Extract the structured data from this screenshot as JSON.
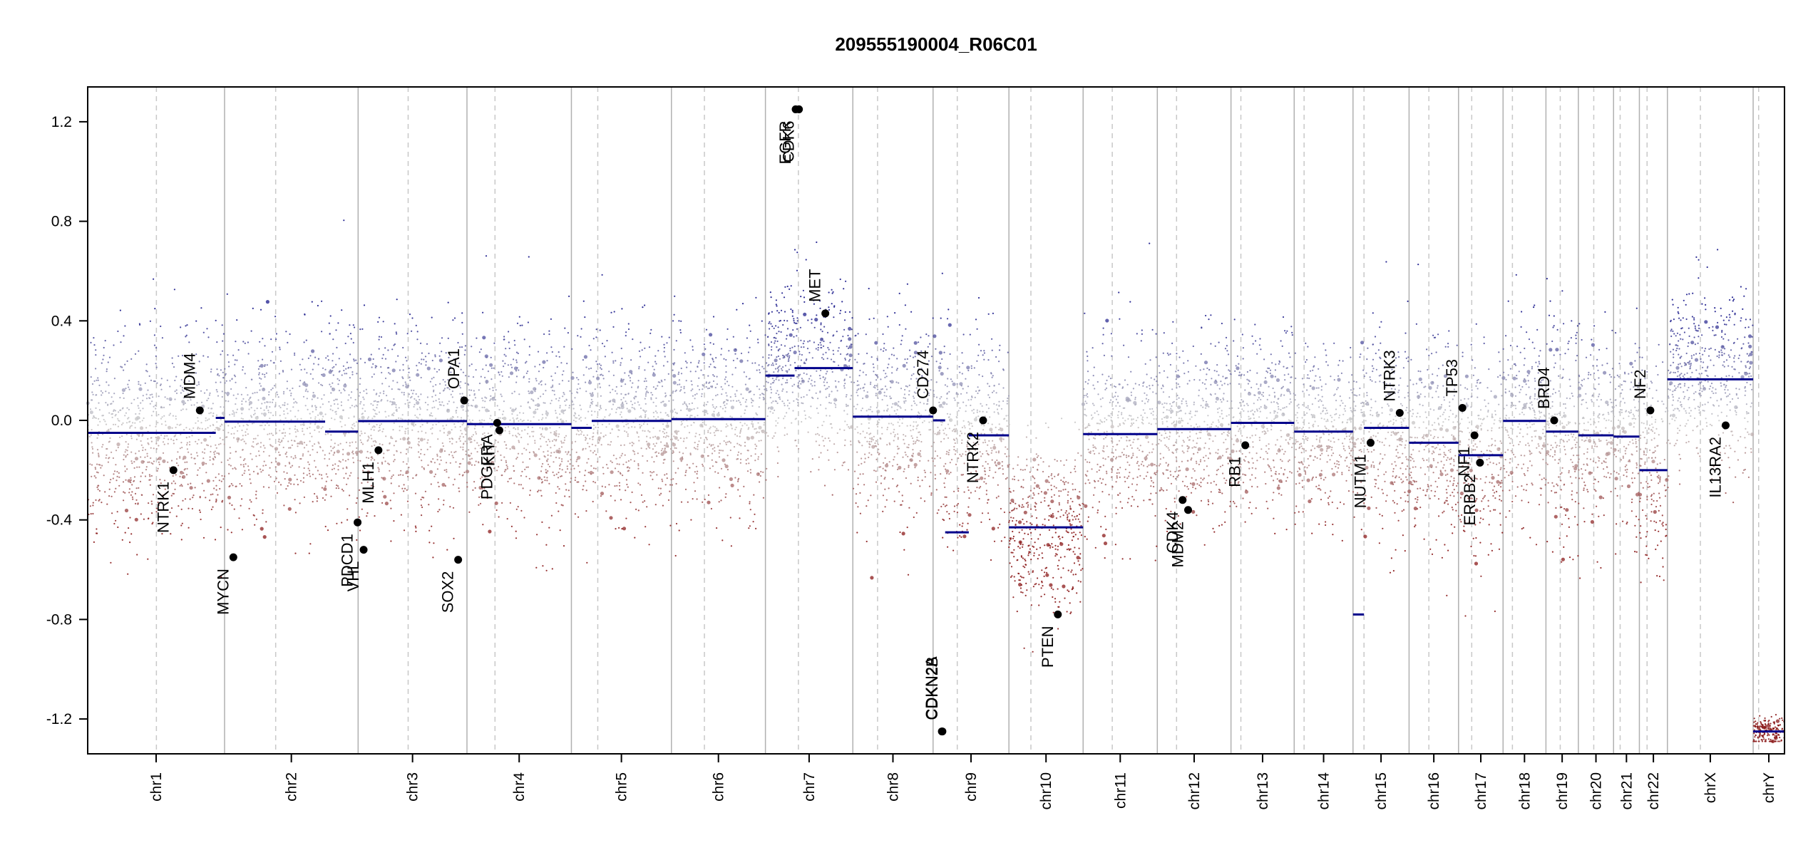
{
  "chart_data": {
    "type": "scatter",
    "title": "209555190004_R06C01",
    "xlabel": "",
    "ylabel": "",
    "ylim": [
      -1.34,
      1.34
    ],
    "yticks": [
      -1.2,
      -0.8,
      -0.4,
      0.0,
      0.4,
      0.8,
      1.2
    ],
    "ytick_labels": [
      "-1.2",
      "-0.8",
      "-0.4",
      "0.0",
      "0.4",
      "0.8",
      "1.2"
    ],
    "grid": false,
    "colors": {
      "gain": "#1a1a8c",
      "loss": "#8b1a1a",
      "neutral": "#c8c8c8",
      "segment": "#00008b",
      "gene_point": "#000000",
      "chromosome_boundary": "#b0b0b0",
      "centromere": "#c8c8c8",
      "frame": "#000000"
    },
    "chromosomes": [
      {
        "name": "chr1",
        "start": 0,
        "end": 249,
        "centromere": 125
      },
      {
        "name": "chr2",
        "start": 249,
        "end": 492,
        "centromere": 342
      },
      {
        "name": "chr3",
        "start": 492,
        "end": 690,
        "centromere": 583
      },
      {
        "name": "chr4",
        "start": 690,
        "end": 880,
        "centromere": 741
      },
      {
        "name": "chr5",
        "start": 880,
        "end": 1062,
        "centromere": 928
      },
      {
        "name": "chr6",
        "start": 1062,
        "end": 1233,
        "centromere": 1122
      },
      {
        "name": "chr7",
        "start": 1233,
        "end": 1392,
        "centromere": 1293
      },
      {
        "name": "chr8",
        "start": 1392,
        "end": 1538,
        "centromere": 1437
      },
      {
        "name": "chr9",
        "start": 1538,
        "end": 1676,
        "centromere": 1582
      },
      {
        "name": "chr10",
        "start": 1676,
        "end": 1811,
        "centromere": 1716
      },
      {
        "name": "chr11",
        "start": 1811,
        "end": 1946,
        "centromere": 1864
      },
      {
        "name": "chr12",
        "start": 1946,
        "end": 2080,
        "centromere": 1981
      },
      {
        "name": "chr13",
        "start": 2080,
        "end": 2195,
        "centromere": 2098
      },
      {
        "name": "chr14",
        "start": 2195,
        "end": 2302,
        "centromere": 2213
      },
      {
        "name": "chr15",
        "start": 2302,
        "end": 2404,
        "centromere": 2322
      },
      {
        "name": "chr16",
        "start": 2404,
        "end": 2494,
        "centromere": 2440
      },
      {
        "name": "chr17",
        "start": 2494,
        "end": 2575,
        "centromere": 2518
      },
      {
        "name": "chr18",
        "start": 2575,
        "end": 2653,
        "centromere": 2592
      },
      {
        "name": "chr19",
        "start": 2653,
        "end": 2712,
        "centromere": 2679
      },
      {
        "name": "chr20",
        "start": 2712,
        "end": 2776,
        "centromere": 2740
      },
      {
        "name": "chr21",
        "start": 2776,
        "end": 2823,
        "centromere": 2788
      },
      {
        "name": "chr22",
        "start": 2823,
        "end": 2874,
        "centromere": 2837
      },
      {
        "name": "chrX",
        "start": 2874,
        "end": 3030,
        "centromere": 2934
      },
      {
        "name": "chrY",
        "start": 3030,
        "end": 3087,
        "centromere": 3040
      }
    ],
    "segments": [
      {
        "chr": "chr1",
        "x0": 0,
        "x1": 233,
        "y": -0.05
      },
      {
        "chr": "chr1",
        "x0": 233,
        "x1": 249,
        "y": 0.01
      },
      {
        "chr": "chr2",
        "x0": 249,
        "x1": 432,
        "y": -0.005
      },
      {
        "chr": "chr2",
        "x0": 432,
        "x1": 492,
        "y": -0.045
      },
      {
        "chr": "chr3",
        "x0": 492,
        "x1": 690,
        "y": -0.003
      },
      {
        "chr": "chr4",
        "x0": 690,
        "x1": 880,
        "y": -0.015
      },
      {
        "chr": "chr5",
        "x0": 880,
        "x1": 917,
        "y": -0.03
      },
      {
        "chr": "chr5",
        "x0": 917,
        "x1": 1062,
        "y": -0.002
      },
      {
        "chr": "chr6",
        "x0": 1062,
        "x1": 1233,
        "y": 0.005
      },
      {
        "chr": "chr7",
        "x0": 1233,
        "x1": 1286,
        "y": 0.18
      },
      {
        "chr": "chr7",
        "x0": 1286,
        "x1": 1392,
        "y": 0.21
      },
      {
        "chr": "chr8",
        "x0": 1392,
        "x1": 1538,
        "y": 0.015
      },
      {
        "chr": "chr9",
        "x0": 1538,
        "x1": 1560,
        "y": 0.0
      },
      {
        "chr": "chr9",
        "x0": 1560,
        "x1": 1603,
        "y": -0.45
      },
      {
        "chr": "chr9",
        "x0": 1603,
        "x1": 1676,
        "y": -0.06
      },
      {
        "chr": "chr10",
        "x0": 1676,
        "x1": 1811,
        "y": -0.43
      },
      {
        "chr": "chr11",
        "x0": 1811,
        "x1": 1946,
        "y": -0.055
      },
      {
        "chr": "chr12",
        "x0": 1946,
        "x1": 2080,
        "y": -0.035
      },
      {
        "chr": "chr13",
        "x0": 2080,
        "x1": 2195,
        "y": -0.01
      },
      {
        "chr": "chr14",
        "x0": 2195,
        "x1": 2302,
        "y": -0.045
      },
      {
        "chr": "chr15",
        "x0": 2302,
        "x1": 2322,
        "y": -0.78
      },
      {
        "chr": "chr15",
        "x0": 2322,
        "x1": 2404,
        "y": -0.03
      },
      {
        "chr": "chr16",
        "x0": 2404,
        "x1": 2494,
        "y": -0.09
      },
      {
        "chr": "chr17",
        "x0": 2494,
        "x1": 2575,
        "y": -0.14
      },
      {
        "chr": "chr18",
        "x0": 2575,
        "x1": 2653,
        "y": -0.002
      },
      {
        "chr": "chr19",
        "x0": 2653,
        "x1": 2712,
        "y": -0.045
      },
      {
        "chr": "chr20",
        "x0": 2712,
        "x1": 2776,
        "y": -0.06
      },
      {
        "chr": "chr21",
        "x0": 2776,
        "x1": 2823,
        "y": -0.065
      },
      {
        "chr": "chr22",
        "x0": 2823,
        "x1": 2874,
        "y": -0.2
      },
      {
        "chrX": true,
        "chr": "chrX",
        "x0": 2874,
        "x1": 3030,
        "y": 0.165
      },
      {
        "chr": "chrY",
        "x0": 3030,
        "x1": 3087,
        "y": -1.25
      }
    ],
    "probe_profile": [
      {
        "chr": "chr1",
        "mean": -0.07,
        "sd": 0.2
      },
      {
        "chr": "chr2",
        "mean": -0.01,
        "sd": 0.19
      },
      {
        "chr": "chr3",
        "mean": -0.01,
        "sd": 0.2
      },
      {
        "chr": "chr4",
        "mean": -0.02,
        "sd": 0.19
      },
      {
        "chr": "chr5",
        "mean": -0.01,
        "sd": 0.18
      },
      {
        "chr": "chr6",
        "mean": 0.0,
        "sd": 0.18
      },
      {
        "chr": "chr7",
        "mean": 0.2,
        "sd": 0.17
      },
      {
        "chr": "chr8",
        "mean": 0.01,
        "sd": 0.19
      },
      {
        "chr": "chr9",
        "mean": -0.07,
        "sd": 0.2
      },
      {
        "chr": "chr10",
        "mean": -0.43,
        "sd": 0.17
      },
      {
        "chr": "chr11",
        "mean": -0.06,
        "sd": 0.18
      },
      {
        "chr": "chr12",
        "mean": -0.04,
        "sd": 0.18
      },
      {
        "chr": "chr13",
        "mean": -0.02,
        "sd": 0.18
      },
      {
        "chr": "chr14",
        "mean": -0.05,
        "sd": 0.17
      },
      {
        "chr": "chr15",
        "mean": -0.04,
        "sd": 0.19
      },
      {
        "chr": "chr16",
        "mean": -0.09,
        "sd": 0.2
      },
      {
        "chr": "chr17",
        "mean": -0.13,
        "sd": 0.21
      },
      {
        "chr": "chr18",
        "mean": -0.01,
        "sd": 0.18
      },
      {
        "chr": "chr19",
        "mean": -0.04,
        "sd": 0.22
      },
      {
        "chr": "chr20",
        "mean": -0.06,
        "sd": 0.19
      },
      {
        "chr": "chr21",
        "mean": -0.07,
        "sd": 0.19
      },
      {
        "chr": "chr22",
        "mean": -0.19,
        "sd": 0.2
      },
      {
        "chr": "chrX",
        "mean": 0.17,
        "sd": 0.17
      },
      {
        "chr": "chrY",
        "mean": -1.25,
        "sd": 0.03
      }
    ],
    "genes": [
      {
        "name": "NTRK1",
        "x": 156,
        "y": -0.2,
        "label_side": "below"
      },
      {
        "name": "MDM4",
        "x": 204,
        "y": 0.04,
        "label_side": "above"
      },
      {
        "name": "MYCN",
        "x": 265,
        "y": -0.55,
        "label_side": "below"
      },
      {
        "name": "PDCD1",
        "x": 491,
        "y": -0.41,
        "label_side": "below"
      },
      {
        "name": "VHL",
        "x": 502,
        "y": -0.52,
        "label_side": "below"
      },
      {
        "name": "MLH1",
        "x": 529,
        "y": -0.12,
        "label_side": "below"
      },
      {
        "name": "SOX2",
        "x": 674,
        "y": -0.56,
        "label_side": "below"
      },
      {
        "name": "OPA1",
        "x": 685,
        "y": 0.08,
        "label_side": "above"
      },
      {
        "name": "PDGFRA",
        "x": 745,
        "y": -0.01,
        "label_side": "below"
      },
      {
        "name": "KIT",
        "x": 749,
        "y": -0.04,
        "label_side": "below"
      },
      {
        "name": "EGFR",
        "x": 1288,
        "y": 1.25,
        "label_side": "below"
      },
      {
        "name": "CDK6",
        "x": 1294,
        "y": 1.25,
        "label_side": "below"
      },
      {
        "name": "MET",
        "x": 1342,
        "y": 0.43,
        "label_side": "above"
      },
      {
        "name": "CD274",
        "x": 1538,
        "y": 0.04,
        "label_side": "above"
      },
      {
        "name": "CDKN2A",
        "x": 1554,
        "y": -1.25,
        "label_side": "above"
      },
      {
        "name": "CDKN2B",
        "x": 1555,
        "y": -1.25,
        "label_side": "above"
      },
      {
        "name": "NTRK2",
        "x": 1629,
        "y": 0.0,
        "label_side": "below"
      },
      {
        "name": "PTEN",
        "x": 1765,
        "y": -0.78,
        "label_side": "below"
      },
      {
        "name": "CDK4",
        "x": 1992,
        "y": -0.32,
        "label_side": "below"
      },
      {
        "name": "MDM2",
        "x": 2002,
        "y": -0.36,
        "label_side": "below"
      },
      {
        "name": "RB1",
        "x": 2106,
        "y": -0.1,
        "label_side": "below"
      },
      {
        "name": "NUTM1",
        "x": 2334,
        "y": -0.09,
        "label_side": "below"
      },
      {
        "name": "NTRK3",
        "x": 2387,
        "y": 0.03,
        "label_side": "above"
      },
      {
        "name": "TP53",
        "x": 2501,
        "y": 0.05,
        "label_side": "above"
      },
      {
        "name": "NF1",
        "x": 2523,
        "y": -0.06,
        "label_side": "below"
      },
      {
        "name": "ERBB2",
        "x": 2533,
        "y": -0.17,
        "label_side": "below"
      },
      {
        "name": "BRD4",
        "x": 2668,
        "y": 0.0,
        "label_side": "above"
      },
      {
        "name": "NF2",
        "x": 2843,
        "y": 0.04,
        "label_side": "above"
      },
      {
        "name": "IL13RA2",
        "x": 2980,
        "y": -0.02,
        "label_side": "below"
      }
    ]
  }
}
